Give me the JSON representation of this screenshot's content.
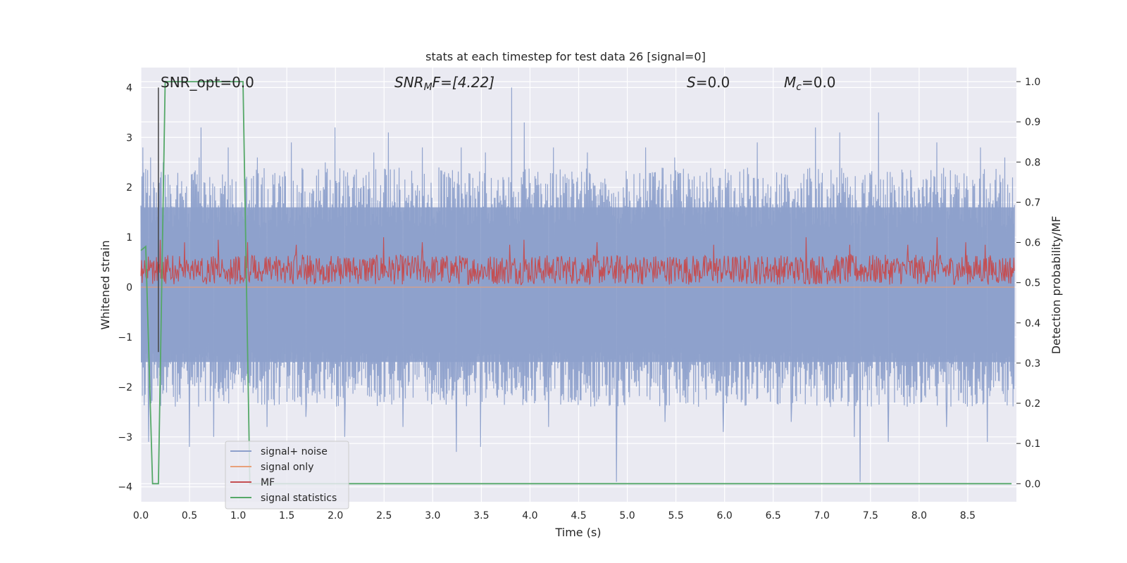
{
  "chart_data": {
    "type": "line",
    "title": "stats at each timestep for test data 26 [signal=0]",
    "xlabel": "Time (s)",
    "ylabel_left": "Whitened strain",
    "ylabel_right": "Detection probability/MF",
    "xlim": [
      0.0,
      9.0
    ],
    "ylim_left": [
      -4.3,
      4.4
    ],
    "ylim_right": [
      -0.045,
      1.035
    ],
    "xticks": [
      "0.0",
      "0.5",
      "1.0",
      "1.5",
      "2.0",
      "2.5",
      "3.0",
      "3.5",
      "4.0",
      "4.5",
      "5.0",
      "5.5",
      "6.0",
      "6.5",
      "7.0",
      "7.5",
      "8.0",
      "8.5"
    ],
    "yticks_left": [
      "−4",
      "−3",
      "−2",
      "−1",
      "0",
      "1",
      "2",
      "3",
      "4"
    ],
    "yticks_right": [
      "0.0",
      "0.1",
      "0.2",
      "0.3",
      "0.4",
      "0.5",
      "0.6",
      "0.7",
      "0.8",
      "0.9",
      "1.0"
    ],
    "grid": true,
    "legend_position": "lower-left",
    "annotations": {
      "snr_opt": "SNR_opt=0.0",
      "snr_mf_base": "SNR",
      "snr_mf_sub": "M",
      "snr_mf_tail": "F=[4.22]",
      "s_italic": "S",
      "s_tail": "=0.0",
      "mc_base": "M",
      "mc_sub": "c",
      "mc_tail": "=0.0"
    },
    "series": [
      {
        "name": "signal+ noise",
        "axis": "left",
        "color": "#8da0cb",
        "description_envelope": {
          "typical_range": [
            -1.5,
            1.6
          ],
          "max": 4.0,
          "min": -3.9
        },
        "spikes_up": [
          [
            0.02,
            2.8
          ],
          [
            0.1,
            2.6
          ],
          [
            0.23,
            2.5
          ],
          [
            0.6,
            2.6
          ],
          [
            0.62,
            3.2
          ],
          [
            0.9,
            2.8
          ],
          [
            1.2,
            2.6
          ],
          [
            1.55,
            2.9
          ],
          [
            1.9,
            2.5
          ],
          [
            2.0,
            3.2
          ],
          [
            2.4,
            2.7
          ],
          [
            2.55,
            3.1
          ],
          [
            2.9,
            2.8
          ],
          [
            3.3,
            2.8
          ],
          [
            3.55,
            2.7
          ],
          [
            3.82,
            4.0
          ],
          [
            3.95,
            3.3
          ],
          [
            4.25,
            2.8
          ],
          [
            4.6,
            2.7
          ],
          [
            5.2,
            2.8
          ],
          [
            5.5,
            2.6
          ],
          [
            6.35,
            2.9
          ],
          [
            6.95,
            3.2
          ],
          [
            7.2,
            3.1
          ],
          [
            7.6,
            3.5
          ],
          [
            8.2,
            2.9
          ],
          [
            8.65,
            2.8
          ],
          [
            8.9,
            2.6
          ]
        ],
        "spikes_down": [
          [
            0.08,
            -3.1
          ],
          [
            0.5,
            -3.2
          ],
          [
            0.75,
            -3.0
          ],
          [
            1.3,
            -2.8
          ],
          [
            1.7,
            -2.6
          ],
          [
            2.1,
            -3.0
          ],
          [
            2.7,
            -2.8
          ],
          [
            3.25,
            -3.3
          ],
          [
            3.3,
            -3.6
          ],
          [
            3.5,
            -3.2
          ],
          [
            4.2,
            -2.8
          ],
          [
            4.9,
            -3.9
          ],
          [
            5.4,
            -2.7
          ],
          [
            6.0,
            -2.9
          ],
          [
            6.7,
            -2.7
          ],
          [
            7.35,
            -3.0
          ],
          [
            7.41,
            -3.9
          ],
          [
            7.7,
            -3.1
          ],
          [
            8.3,
            -2.8
          ],
          [
            8.72,
            -3.1
          ]
        ]
      },
      {
        "name": "signal only",
        "axis": "left",
        "color": "#e8a07a",
        "values_constant": 0.0
      },
      {
        "name": "MF",
        "axis": "left",
        "color": "#c44e52",
        "description_envelope": {
          "typical_range": [
            0.0,
            0.7
          ],
          "max": 1.0,
          "min": -0.05
        },
        "spikes_up": [
          [
            0.2,
            0.95
          ],
          [
            0.45,
            0.9
          ],
          [
            0.8,
            0.95
          ],
          [
            1.1,
            0.9
          ],
          [
            1.6,
            0.85
          ],
          [
            2.5,
            1.0
          ],
          [
            2.9,
            0.9
          ],
          [
            3.8,
            0.85
          ],
          [
            3.95,
            0.95
          ],
          [
            4.7,
            0.9
          ],
          [
            5.9,
            0.85
          ],
          [
            6.85,
            1.0
          ],
          [
            7.3,
            0.85
          ],
          [
            7.9,
            0.85
          ],
          [
            8.2,
            1.0
          ],
          [
            8.5,
            0.9
          ],
          [
            8.7,
            0.85
          ]
        ]
      },
      {
        "name": "signal statistics",
        "axis": "right",
        "color": "#55a868",
        "x": [
          0.0,
          0.05,
          0.12,
          0.18,
          0.25,
          1.05,
          1.12,
          1.18,
          8.95
        ],
        "y": [
          0.58,
          0.59,
          0.0,
          0.0,
          1.0,
          1.0,
          0.0,
          0.0,
          0.0
        ]
      }
    ],
    "vertical_marker": {
      "x": 0.18,
      "color": "#444444"
    }
  }
}
